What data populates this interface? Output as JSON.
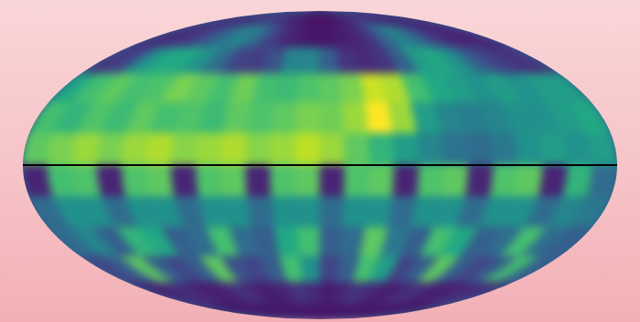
{
  "chart_data": {
    "type": "heatmap",
    "tick_labels": false,
    "lon_edges": [
      -180,
      -165,
      -150,
      -135,
      -120,
      -105,
      -90,
      -75,
      -60,
      -45,
      -30,
      -15,
      0,
      15,
      30,
      45,
      60,
      75,
      90,
      105,
      120,
      135,
      150,
      165,
      180
    ],
    "lat_edges": [
      90,
      75,
      60,
      45,
      30,
      15,
      0,
      -15,
      -30,
      -45,
      -60,
      -75,
      -90
    ],
    "color_range": [
      0,
      1
    ],
    "hlines": [
      0
    ],
    "cells": [
      [
        0.1,
        0.1,
        0.1,
        0.12,
        0.15,
        0.18,
        0.2,
        0.15,
        0.1,
        0.08,
        0.06,
        0.05,
        0.05,
        0.06,
        0.08,
        0.12,
        0.18,
        0.2,
        0.15,
        0.1,
        0.08,
        0.08,
        0.1,
        0.1
      ],
      [
        0.12,
        0.12,
        0.15,
        0.2,
        0.3,
        0.4,
        0.45,
        0.35,
        0.2,
        0.12,
        0.08,
        0.06,
        0.06,
        0.08,
        0.1,
        0.15,
        0.3,
        0.45,
        0.4,
        0.25,
        0.15,
        0.1,
        0.1,
        0.1
      ],
      [
        0.15,
        0.2,
        0.5,
        0.6,
        0.6,
        0.5,
        0.35,
        0.2,
        0.18,
        0.25,
        0.45,
        0.45,
        0.3,
        0.15,
        0.12,
        0.15,
        0.3,
        0.55,
        0.6,
        0.5,
        0.3,
        0.2,
        0.15,
        0.15
      ],
      [
        0.6,
        0.7,
        0.75,
        0.7,
        0.72,
        0.8,
        0.75,
        0.7,
        0.78,
        0.7,
        0.68,
        0.72,
        0.75,
        0.8,
        0.92,
        0.88,
        0.7,
        0.6,
        0.55,
        0.5,
        0.55,
        0.5,
        0.55,
        0.55
      ],
      [
        0.7,
        0.65,
        0.72,
        0.68,
        0.75,
        0.7,
        0.72,
        0.68,
        0.75,
        0.72,
        0.75,
        0.8,
        0.78,
        0.85,
        1.0,
        0.85,
        0.55,
        0.45,
        0.42,
        0.45,
        0.5,
        0.5,
        0.55,
        0.6
      ],
      [
        0.75,
        0.8,
        0.85,
        0.8,
        0.85,
        0.88,
        0.82,
        0.85,
        0.88,
        0.82,
        0.85,
        0.9,
        0.85,
        0.75,
        0.65,
        0.55,
        0.45,
        0.38,
        0.35,
        0.4,
        0.5,
        0.55,
        0.5,
        0.55
      ],
      [
        0.1,
        0.7,
        0.72,
        0.1,
        0.72,
        0.75,
        0.1,
        0.72,
        0.75,
        0.1,
        0.72,
        0.75,
        0.1,
        0.72,
        0.75,
        0.1,
        0.72,
        0.75,
        0.1,
        0.72,
        0.75,
        0.1,
        0.65,
        0.35
      ],
      [
        0.35,
        0.5,
        0.5,
        0.35,
        0.5,
        0.5,
        0.35,
        0.5,
        0.5,
        0.35,
        0.5,
        0.5,
        0.35,
        0.5,
        0.5,
        0.35,
        0.5,
        0.5,
        0.35,
        0.5,
        0.5,
        0.35,
        0.45,
        0.4
      ],
      [
        0.35,
        0.45,
        0.3,
        0.65,
        0.6,
        0.3,
        0.35,
        0.7,
        0.35,
        0.3,
        0.6,
        0.7,
        0.3,
        0.35,
        0.75,
        0.4,
        0.3,
        0.7,
        0.6,
        0.3,
        0.35,
        0.7,
        0.35,
        0.3
      ],
      [
        0.2,
        0.3,
        0.75,
        0.3,
        0.2,
        0.3,
        0.75,
        0.25,
        0.2,
        0.3,
        0.7,
        0.5,
        0.2,
        0.3,
        0.7,
        0.55,
        0.2,
        0.3,
        0.75,
        0.3,
        0.2,
        0.3,
        0.7,
        0.3
      ],
      [
        0.08,
        0.1,
        0.15,
        0.1,
        0.08,
        0.1,
        0.15,
        0.1,
        0.08,
        0.1,
        0.15,
        0.12,
        0.08,
        0.1,
        0.15,
        0.12,
        0.08,
        0.1,
        0.15,
        0.1,
        0.08,
        0.1,
        0.15,
        0.1
      ],
      [
        0.06,
        0.06,
        0.06,
        0.06,
        0.06,
        0.06,
        0.06,
        0.06,
        0.06,
        0.06,
        0.06,
        0.06,
        0.06,
        0.06,
        0.06,
        0.06,
        0.06,
        0.06,
        0.06,
        0.06,
        0.06,
        0.06,
        0.06,
        0.06
      ]
    ]
  }
}
